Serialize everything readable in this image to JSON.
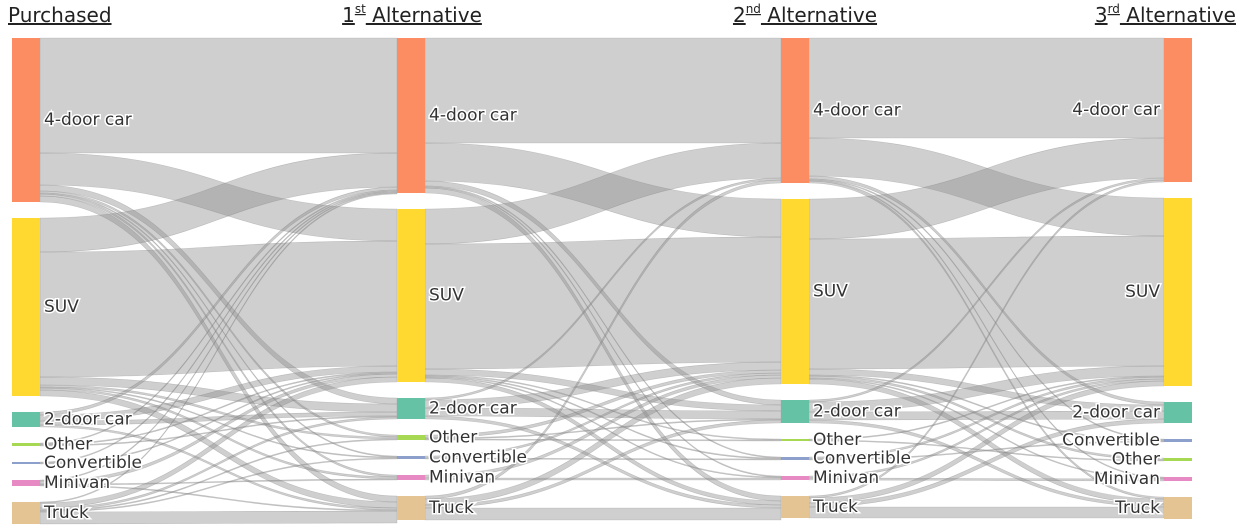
{
  "chart_data": {
    "type": "sankey",
    "columns": [
      {
        "title": [
          {
            "text": "Purchased"
          }
        ],
        "nodes": [
          {
            "label": "4-door car",
            "value": 164,
            "color": "#fc8d62"
          },
          {
            "label": "SUV",
            "value": 178,
            "color": "#ffd92f"
          },
          {
            "label": "2-door car",
            "value": 15,
            "color": "#66c2a5"
          },
          {
            "label": "Other",
            "value": 3,
            "color": "#a6d854"
          },
          {
            "label": "Convertible",
            "value": 2,
            "color": "#8da0cb"
          },
          {
            "label": "Minivan",
            "value": 6,
            "color": "#e78ac3"
          },
          {
            "label": "Truck",
            "value": 22,
            "color": "#e5c494"
          }
        ]
      },
      {
        "title": [
          {
            "text": "1"
          },
          {
            "text": "st",
            "sup": true
          },
          {
            "text": " Alternative"
          }
        ],
        "nodes": [
          {
            "label": "4-door car",
            "value": 155,
            "color": "#fc8d62"
          },
          {
            "label": "SUV",
            "value": 173,
            "color": "#ffd92f"
          },
          {
            "label": "2-door car",
            "value": 21,
            "color": "#66c2a5"
          },
          {
            "label": "Other",
            "value": 5,
            "color": "#a6d854"
          },
          {
            "label": "Convertible",
            "value": 3,
            "color": "#8da0cb"
          },
          {
            "label": "Minivan",
            "value": 5,
            "color": "#e78ac3"
          },
          {
            "label": "Truck",
            "value": 24,
            "color": "#e5c494"
          }
        ]
      },
      {
        "title": [
          {
            "text": "2"
          },
          {
            "text": "nd",
            "sup": true
          },
          {
            "text": " Alternative"
          }
        ],
        "nodes": [
          {
            "label": "4-door car",
            "value": 145,
            "color": "#fc8d62"
          },
          {
            "label": "SUV",
            "value": 185,
            "color": "#ffd92f"
          },
          {
            "label": "2-door car",
            "value": 23,
            "color": "#66c2a5"
          },
          {
            "label": "Other",
            "value": 2,
            "color": "#a6d854"
          },
          {
            "label": "Convertible",
            "value": 3,
            "color": "#8da0cb"
          },
          {
            "label": "Minivan",
            "value": 4,
            "color": "#e78ac3"
          },
          {
            "label": "Truck",
            "value": 22,
            "color": "#e5c494"
          }
        ]
      },
      {
        "title": [
          {
            "text": "3"
          },
          {
            "text": "rd",
            "sup": true
          },
          {
            "text": " Alternative"
          }
        ],
        "nodes": [
          {
            "label": "4-door car",
            "value": 144,
            "color": "#fc8d62"
          },
          {
            "label": "SUV",
            "value": 188,
            "color": "#ffd92f"
          },
          {
            "label": "2-door car",
            "value": 21,
            "color": "#66c2a5"
          },
          {
            "label": "Convertible",
            "value": 3,
            "color": "#8da0cb"
          },
          {
            "label": "Other",
            "value": 3,
            "color": "#a6d854"
          },
          {
            "label": "Minivan",
            "value": 4,
            "color": "#e78ac3"
          },
          {
            "label": "Truck",
            "value": 22,
            "color": "#e5c494"
          }
        ]
      }
    ],
    "links": [
      [
        {
          "source": 0,
          "target": 0,
          "value": 115
        },
        {
          "source": 0,
          "target": 1,
          "value": 32
        },
        {
          "source": 0,
          "target": 2,
          "value": 6
        },
        {
          "source": 0,
          "target": 3,
          "value": 2
        },
        {
          "source": 0,
          "target": 4,
          "value": 1
        },
        {
          "source": 0,
          "target": 5,
          "value": 2
        },
        {
          "source": 0,
          "target": 6,
          "value": 6
        },
        {
          "source": 1,
          "target": 0,
          "value": 34
        },
        {
          "source": 1,
          "target": 1,
          "value": 125
        },
        {
          "source": 1,
          "target": 2,
          "value": 8
        },
        {
          "source": 1,
          "target": 3,
          "value": 2
        },
        {
          "source": 1,
          "target": 4,
          "value": 1
        },
        {
          "source": 1,
          "target": 5,
          "value": 2
        },
        {
          "source": 1,
          "target": 6,
          "value": 6
        },
        {
          "source": 2,
          "target": 0,
          "value": 3
        },
        {
          "source": 2,
          "target": 1,
          "value": 6
        },
        {
          "source": 2,
          "target": 2,
          "value": 4
        },
        {
          "source": 2,
          "target": 6,
          "value": 2
        },
        {
          "source": 3,
          "target": 0,
          "value": 1
        },
        {
          "source": 3,
          "target": 1,
          "value": 1
        },
        {
          "source": 3,
          "target": 2,
          "value": 1
        },
        {
          "source": 4,
          "target": 0,
          "value": 1
        },
        {
          "source": 4,
          "target": 1,
          "value": 1
        },
        {
          "source": 5,
          "target": 0,
          "value": 1
        },
        {
          "source": 5,
          "target": 1,
          "value": 3
        },
        {
          "source": 5,
          "target": 5,
          "value": 1
        },
        {
          "source": 5,
          "target": 6,
          "value": 1
        },
        {
          "source": 6,
          "target": 0,
          "value": 1
        },
        {
          "source": 6,
          "target": 1,
          "value": 5
        },
        {
          "source": 6,
          "target": 2,
          "value": 2
        },
        {
          "source": 6,
          "target": 3,
          "value": 1
        },
        {
          "source": 6,
          "target": 4,
          "value": 1
        },
        {
          "source": 6,
          "target": 6,
          "value": 12
        }
      ],
      [
        {
          "source": 0,
          "target": 0,
          "value": 105
        },
        {
          "source": 0,
          "target": 1,
          "value": 38
        },
        {
          "source": 0,
          "target": 2,
          "value": 5
        },
        {
          "source": 0,
          "target": 4,
          "value": 1
        },
        {
          "source": 0,
          "target": 5,
          "value": 1
        },
        {
          "source": 0,
          "target": 6,
          "value": 5
        },
        {
          "source": 1,
          "target": 0,
          "value": 35
        },
        {
          "source": 1,
          "target": 1,
          "value": 125
        },
        {
          "source": 1,
          "target": 2,
          "value": 6
        },
        {
          "source": 1,
          "target": 3,
          "value": 1
        },
        {
          "source": 1,
          "target": 4,
          "value": 1
        },
        {
          "source": 1,
          "target": 5,
          "value": 1
        },
        {
          "source": 1,
          "target": 6,
          "value": 4
        },
        {
          "source": 2,
          "target": 0,
          "value": 2
        },
        {
          "source": 2,
          "target": 1,
          "value": 8
        },
        {
          "source": 2,
          "target": 2,
          "value": 8
        },
        {
          "source": 2,
          "target": 6,
          "value": 3
        },
        {
          "source": 3,
          "target": 1,
          "value": 3
        },
        {
          "source": 3,
          "target": 2,
          "value": 1
        },
        {
          "source": 3,
          "target": 3,
          "value": 1
        },
        {
          "source": 4,
          "target": 1,
          "value": 2
        },
        {
          "source": 4,
          "target": 4,
          "value": 1
        },
        {
          "source": 5,
          "target": 1,
          "value": 3
        },
        {
          "source": 5,
          "target": 5,
          "value": 2
        },
        {
          "source": 6,
          "target": 0,
          "value": 3
        },
        {
          "source": 6,
          "target": 1,
          "value": 6
        },
        {
          "source": 6,
          "target": 2,
          "value": 3
        },
        {
          "source": 6,
          "target": 6,
          "value": 12
        }
      ],
      [
        {
          "source": 0,
          "target": 0,
          "value": 100
        },
        {
          "source": 0,
          "target": 1,
          "value": 38
        },
        {
          "source": 0,
          "target": 2,
          "value": 3
        },
        {
          "source": 0,
          "target": 3,
          "value": 1
        },
        {
          "source": 0,
          "target": 5,
          "value": 1
        },
        {
          "source": 0,
          "target": 6,
          "value": 2
        },
        {
          "source": 1,
          "target": 0,
          "value": 40
        },
        {
          "source": 1,
          "target": 1,
          "value": 130
        },
        {
          "source": 1,
          "target": 2,
          "value": 6
        },
        {
          "source": 1,
          "target": 4,
          "value": 2
        },
        {
          "source": 1,
          "target": 3,
          "value": 1
        },
        {
          "source": 1,
          "target": 5,
          "value": 1
        },
        {
          "source": 1,
          "target": 6,
          "value": 5
        },
        {
          "source": 2,
          "target": 0,
          "value": 2
        },
        {
          "source": 2,
          "target": 1,
          "value": 10
        },
        {
          "source": 2,
          "target": 2,
          "value": 8
        },
        {
          "source": 2,
          "target": 6,
          "value": 3
        },
        {
          "source": 3,
          "target": 1,
          "value": 1
        },
        {
          "source": 3,
          "target": 4,
          "value": 1
        },
        {
          "source": 4,
          "target": 1,
          "value": 2
        },
        {
          "source": 4,
          "target": 3,
          "value": 1
        },
        {
          "source": 5,
          "target": 1,
          "value": 2
        },
        {
          "source": 5,
          "target": 5,
          "value": 2
        },
        {
          "source": 6,
          "target": 0,
          "value": 2
        },
        {
          "source": 6,
          "target": 1,
          "value": 5
        },
        {
          "source": 6,
          "target": 2,
          "value": 4
        },
        {
          "source": 6,
          "target": 6,
          "value": 11
        }
      ]
    ]
  }
}
